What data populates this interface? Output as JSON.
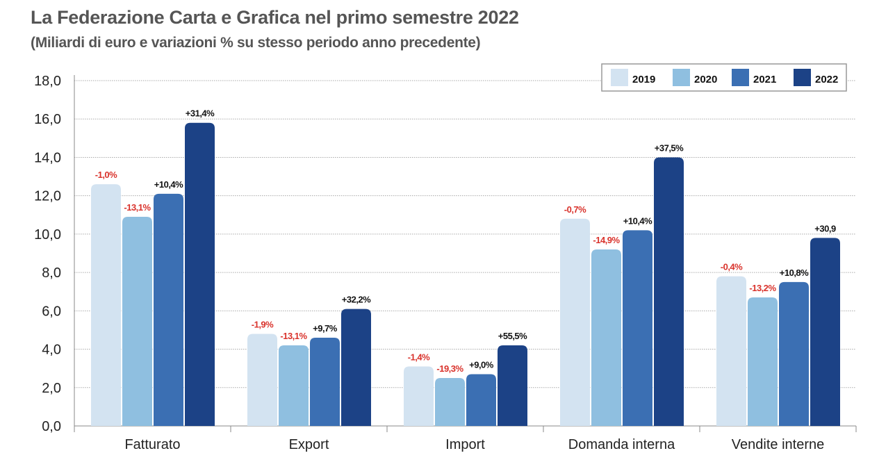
{
  "chart_data": {
    "type": "bar",
    "title": "La Federazione Carta e Grafica nel primo semestre 2022",
    "subtitle": "(Miliardi di euro e variazioni % su stesso periodo anno precedente)",
    "xlabel": "",
    "ylabel": "",
    "ylim": [
      0,
      18
    ],
    "yticks": [
      "0,0",
      "2,0",
      "4,0",
      "6,0",
      "8,0",
      "10,0",
      "12,0",
      "14,0",
      "16,0",
      "18,0"
    ],
    "grid": true,
    "legend_position": "top-right",
    "categories": [
      "Fatturato",
      "Export",
      "Import",
      "Domanda interna",
      "Vendite interne"
    ],
    "series": [
      {
        "name": "2019",
        "color": "#d3e3f1",
        "values": [
          12.6,
          4.8,
          3.1,
          10.8,
          7.8
        ],
        "labels": [
          "-1,0%",
          "-1,9%",
          "-1,4%",
          "-0,7%",
          "-0,4%"
        ]
      },
      {
        "name": "2020",
        "color": "#8fbfe0",
        "values": [
          10.9,
          4.2,
          2.5,
          9.2,
          6.7
        ],
        "labels": [
          "-13,1%",
          "-13,1%",
          "-19,3%",
          "-14,9%",
          "-13,2%"
        ]
      },
      {
        "name": "2021",
        "color": "#3b6fb3",
        "values": [
          12.1,
          4.6,
          2.7,
          10.2,
          7.5
        ],
        "labels": [
          "+10,4%",
          "+9,7%",
          "+9,0%",
          "+10,4%",
          "+10,8%"
        ]
      },
      {
        "name": "2022",
        "color": "#1c4286",
        "values": [
          15.8,
          6.1,
          4.2,
          14.0,
          9.8
        ],
        "labels": [
          "+31,4%",
          "+32,2%",
          "+55,5%",
          "+37,5%",
          "+30,9"
        ]
      }
    ],
    "negative_label_color": "#d9322b",
    "positive_label_color": "#111111"
  }
}
